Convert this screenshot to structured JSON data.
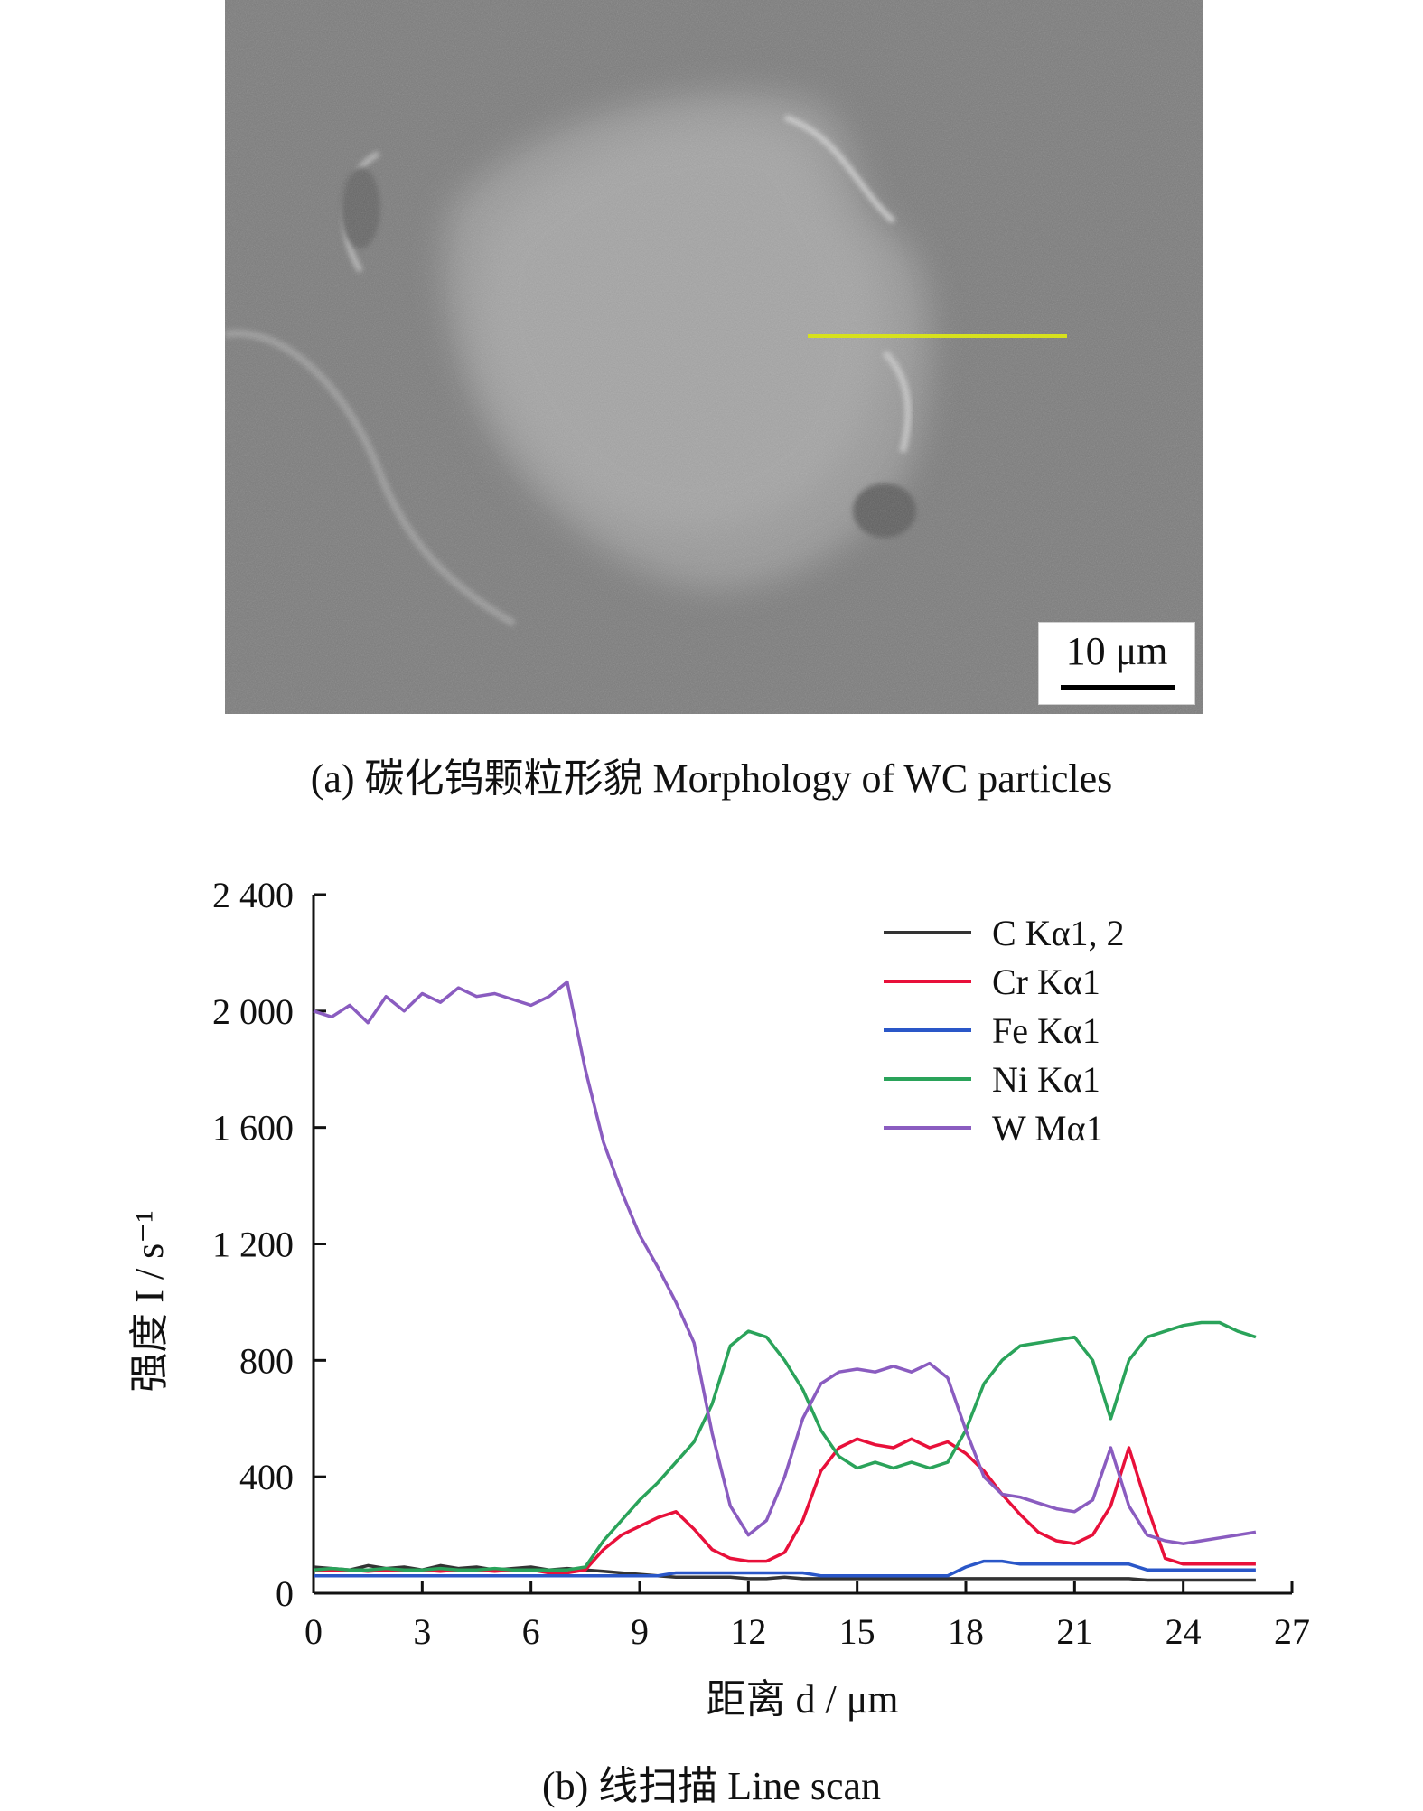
{
  "panel_a": {
    "scale_label": "10 μm",
    "caption": "(a) 碳化钨颗粒形貌 Morphology of WC particles",
    "scan_line_color": "#d7e11c"
  },
  "panel_b": {
    "caption": "(b) 线扫描 Line scan"
  },
  "chart_data": {
    "type": "line",
    "xlabel": "距离 d / μm",
    "ylabel": "强度 I / s⁻¹",
    "xlim": [
      0,
      27
    ],
    "ylim": [
      0,
      2400
    ],
    "xticks": [
      0,
      3,
      6,
      9,
      12,
      15,
      18,
      21,
      24,
      27
    ],
    "xtick_labels": [
      "0",
      "3",
      "6",
      "9",
      "12",
      "15",
      "18",
      "21",
      "24",
      "27"
    ],
    "yticks": [
      0,
      400,
      800,
      1200,
      1600,
      2000,
      2400
    ],
    "ytick_labels": [
      "0",
      "400",
      "800",
      "1 200",
      "1 600",
      "2 000",
      "2 400"
    ],
    "legend_position": "top-right",
    "grid": false,
    "x": [
      0,
      0.5,
      1,
      1.5,
      2,
      2.5,
      3,
      3.5,
      4,
      4.5,
      5,
      5.5,
      6,
      6.5,
      7,
      7.5,
      8,
      8.5,
      9,
      9.5,
      10,
      10.5,
      11,
      11.5,
      12,
      12.5,
      13,
      13.5,
      14,
      14.5,
      15,
      15.5,
      16,
      16.5,
      17,
      17.5,
      18,
      18.5,
      19,
      19.5,
      20,
      20.5,
      21,
      21.5,
      22,
      22.5,
      23,
      23.5,
      24,
      24.5,
      25,
      25.5,
      26
    ],
    "series": [
      {
        "name": "C Kα1, 2",
        "color": "#333333",
        "values": [
          90,
          85,
          80,
          95,
          85,
          90,
          80,
          95,
          85,
          90,
          80,
          85,
          90,
          80,
          85,
          80,
          75,
          70,
          65,
          60,
          55,
          55,
          55,
          55,
          50,
          50,
          55,
          50,
          50,
          50,
          50,
          50,
          50,
          50,
          50,
          50,
          50,
          50,
          50,
          50,
          50,
          50,
          50,
          50,
          50,
          50,
          45,
          45,
          45,
          45,
          45,
          45,
          45
        ]
      },
      {
        "name": "Cr Kα1",
        "color": "#e8103a",
        "values": [
          80,
          80,
          80,
          75,
          80,
          80,
          80,
          75,
          80,
          80,
          75,
          80,
          80,
          70,
          70,
          80,
          150,
          200,
          230,
          260,
          280,
          220,
          150,
          120,
          110,
          110,
          140,
          250,
          420,
          500,
          530,
          510,
          500,
          530,
          500,
          520,
          480,
          420,
          340,
          270,
          210,
          180,
          170,
          200,
          300,
          500,
          300,
          120,
          100,
          100,
          100,
          100,
          100
        ]
      },
      {
        "name": "Fe Kα1",
        "color": "#2a57c8",
        "values": [
          60,
          60,
          60,
          60,
          60,
          60,
          60,
          60,
          60,
          60,
          60,
          60,
          60,
          60,
          60,
          60,
          60,
          60,
          60,
          60,
          70,
          70,
          70,
          70,
          70,
          70,
          70,
          70,
          60,
          60,
          60,
          60,
          60,
          60,
          60,
          60,
          90,
          110,
          110,
          100,
          100,
          100,
          100,
          100,
          100,
          100,
          80,
          80,
          80,
          80,
          80,
          80,
          80
        ]
      },
      {
        "name": "Ni Kα1",
        "color": "#2aa35a",
        "values": [
          80,
          85,
          80,
          80,
          85,
          80,
          80,
          85,
          80,
          80,
          85,
          80,
          80,
          80,
          80,
          90,
          180,
          250,
          320,
          380,
          450,
          520,
          650,
          850,
          900,
          880,
          800,
          700,
          560,
          470,
          430,
          450,
          430,
          450,
          430,
          450,
          560,
          720,
          800,
          850,
          860,
          870,
          880,
          800,
          600,
          800,
          880,
          900,
          920,
          930,
          930,
          900,
          880
        ]
      },
      {
        "name": "W Mα1",
        "color": "#8a5cc0",
        "values": [
          2000,
          1980,
          2020,
          1960,
          2050,
          2000,
          2060,
          2030,
          2080,
          2050,
          2060,
          2040,
          2020,
          2050,
          2100,
          1800,
          1550,
          1380,
          1230,
          1120,
          1000,
          860,
          550,
          300,
          200,
          250,
          400,
          600,
          720,
          760,
          770,
          760,
          780,
          760,
          790,
          740,
          560,
          400,
          340,
          330,
          310,
          290,
          280,
          320,
          500,
          300,
          200,
          180,
          170,
          180,
          190,
          200,
          210
        ]
      }
    ]
  }
}
